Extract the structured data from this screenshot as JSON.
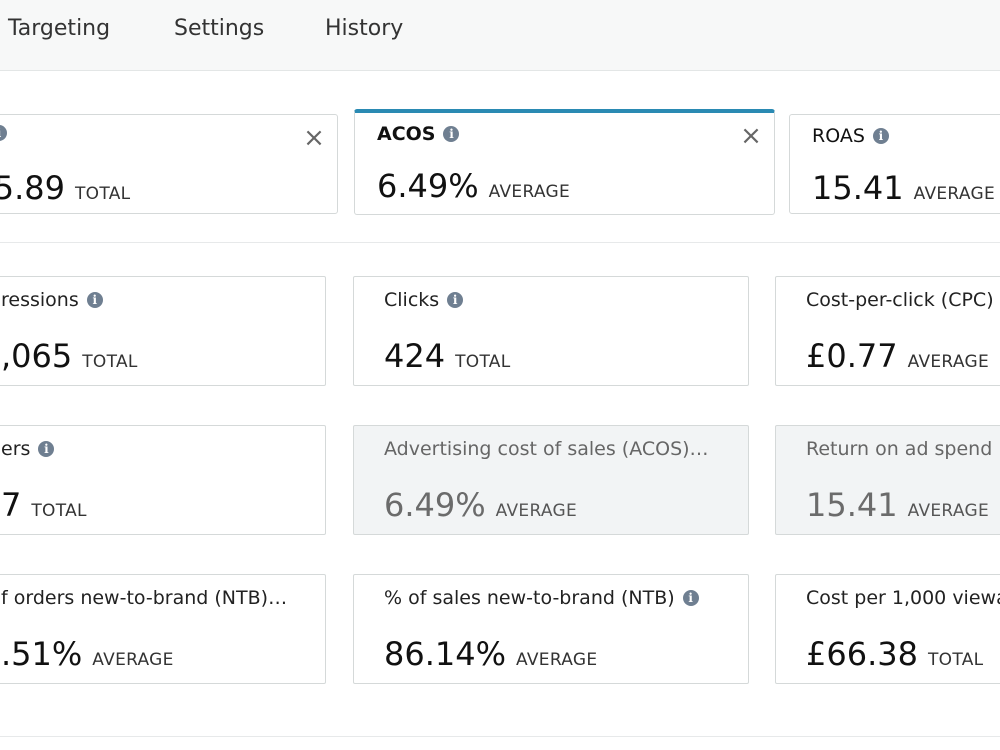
{
  "tabs": [
    {
      "label": "Targeting"
    },
    {
      "label": "Settings"
    },
    {
      "label": "History"
    }
  ],
  "selected_metrics": [
    {
      "title": "",
      "value": "005.89",
      "unit": "TOTAL",
      "closable": true
    },
    {
      "title": "ACOS",
      "value": "6.49%",
      "unit": "AVERAGE",
      "closable": true,
      "active": true
    },
    {
      "title": "ROAS",
      "value": "15.41",
      "unit": "AVERAGE",
      "closable": false
    }
  ],
  "metrics": [
    [
      {
        "title": "ressions",
        "value": ",065",
        "unit": "TOTAL",
        "info": true
      },
      {
        "title": "Clicks",
        "value": "424",
        "unit": "TOTAL",
        "info": true
      },
      {
        "title": "Cost-per-click (CPC)",
        "value": "£0.77",
        "unit": "AVERAGE",
        "info": false
      }
    ],
    [
      {
        "title": "ers",
        "value": "7",
        "unit": "TOTAL",
        "info": true
      },
      {
        "title": "Advertising cost of sales (ACOS)…",
        "value": "6.49%",
        "unit": "AVERAGE",
        "info": false,
        "disabled": true
      },
      {
        "title": "Return on ad spend",
        "value": "15.41",
        "unit": "AVERAGE",
        "info": false,
        "disabled": true
      }
    ],
    [
      {
        "title": "f orders new-to-brand (NTB)…",
        "value": ".51%",
        "unit": "AVERAGE",
        "info": false
      },
      {
        "title": "% of sales new-to-brand (NTB)",
        "value": "86.14%",
        "unit": "AVERAGE",
        "info": true
      },
      {
        "title": "Cost per 1,000 viewa",
        "value": "£66.38",
        "unit": "TOTAL",
        "info": false
      }
    ]
  ],
  "colors": {
    "accent": "#2a8ab3",
    "info_icon": "#6f7f91",
    "disabled_bg": "#f2f4f5"
  },
  "icons": {
    "info": "info-icon",
    "close": "close-icon"
  }
}
